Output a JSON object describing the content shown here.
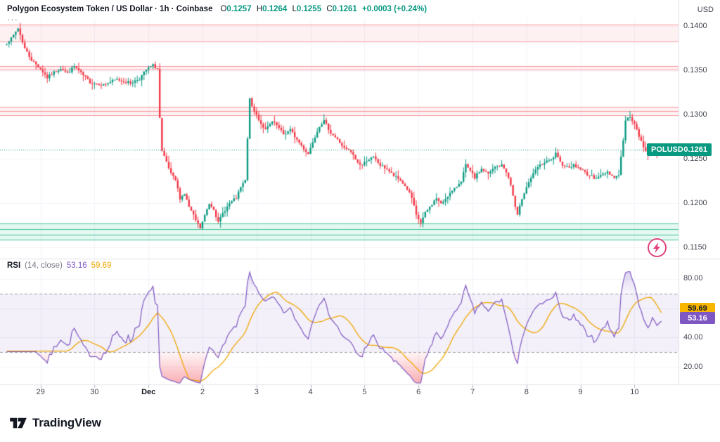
{
  "header": {
    "symbol_title": "Polygon Ecosystem Token / US Dollar · 1h · Coinbase",
    "ohlc": {
      "o_label": "O",
      "o": "0.1257",
      "h_label": "H",
      "h": "0.1264",
      "l_label": "L",
      "l": "0.1255",
      "c_label": "C",
      "c": "0.1261",
      "change": "+0.0003 (+0.24%)"
    },
    "currency_label": "USD",
    "more_label": "···"
  },
  "price_scale": {
    "labels": [
      "0.1400",
      "0.1350",
      "0.1300",
      "0.1250",
      "0.1200",
      "0.1150"
    ],
    "values": [
      0.14,
      0.135,
      0.13,
      0.125,
      0.12,
      0.115
    ]
  },
  "price_badge": {
    "symbol": "POLUSD",
    "value": "0.1261"
  },
  "rsi_panel_ui": {
    "title": "RSI",
    "params": "(14, close)",
    "value": "53.16",
    "ma_value": "59.69",
    "scale_labels": [
      "80.00",
      "40.00",
      "20.00"
    ],
    "scale_values": [
      80,
      40,
      20
    ],
    "badges": [
      {
        "text": "59.69",
        "kind": "ma",
        "value": 59.69
      },
      {
        "text": "53.16",
        "kind": "rsi",
        "value": 53.16
      }
    ]
  },
  "footer": {
    "brand": "TradingView"
  },
  "colors": {
    "up": "#089981",
    "down": "#f23645",
    "accent": "#089981",
    "rsi_line": "#7e57c2",
    "rsi_ma_line": "#f0a500",
    "rsi_badge_bg": "#7e57c2",
    "ma_badge_bg": "#f7b500",
    "resistance": "#f23645",
    "support": "#00b87c",
    "badge_bg": "#089981"
  },
  "chart_data": {
    "type": "candlestick",
    "title": "Polygon Ecosystem Token / US Dollar",
    "exchange": "Coinbase",
    "timeframe": "1h",
    "units": "USD",
    "ohlc_current": {
      "open": 0.1257,
      "high": 0.1264,
      "low": 0.1255,
      "close": 0.1261,
      "change": 0.0003,
      "change_pct": 0.24
    },
    "current_price": 0.1261,
    "ylim": [
      0.1144,
      0.1406
    ],
    "num_candles": 292,
    "close_anchors": [
      [
        0,
        0.138
      ],
      [
        3,
        0.1386
      ],
      [
        6,
        0.1398
      ],
      [
        9,
        0.1375
      ],
      [
        12,
        0.1362
      ],
      [
        16,
        0.1352
      ],
      [
        19,
        0.1342
      ],
      [
        22,
        0.1348
      ],
      [
        25,
        0.1353
      ],
      [
        28,
        0.1347
      ],
      [
        31,
        0.1355
      ],
      [
        34,
        0.1347
      ],
      [
        38,
        0.1337
      ],
      [
        44,
        0.1334
      ],
      [
        50,
        0.134
      ],
      [
        56,
        0.1336
      ],
      [
        60,
        0.1341
      ],
      [
        63,
        0.1351
      ],
      [
        66,
        0.1356
      ],
      [
        68,
        0.1352
      ],
      [
        69,
        0.1296
      ],
      [
        70,
        0.1258
      ],
      [
        72,
        0.1246
      ],
      [
        74,
        0.1233
      ],
      [
        76,
        0.1226
      ],
      [
        78,
        0.1206
      ],
      [
        80,
        0.1211
      ],
      [
        82,
        0.1196
      ],
      [
        85,
        0.1181
      ],
      [
        87,
        0.1172
      ],
      [
        89,
        0.1186
      ],
      [
        91,
        0.12
      ],
      [
        93,
        0.1194
      ],
      [
        95,
        0.1178
      ],
      [
        97,
        0.1189
      ],
      [
        100,
        0.12
      ],
      [
        103,
        0.1206
      ],
      [
        105,
        0.1218
      ],
      [
        107,
        0.1226
      ],
      [
        108,
        0.1272
      ],
      [
        109,
        0.132
      ],
      [
        110,
        0.1308
      ],
      [
        112,
        0.13
      ],
      [
        114,
        0.129
      ],
      [
        116,
        0.1283
      ],
      [
        119,
        0.1292
      ],
      [
        121,
        0.1288
      ],
      [
        124,
        0.1278
      ],
      [
        127,
        0.1283
      ],
      [
        130,
        0.1272
      ],
      [
        133,
        0.1262
      ],
      [
        135,
        0.1256
      ],
      [
        137,
        0.127
      ],
      [
        140,
        0.1288
      ],
      [
        142,
        0.1293
      ],
      [
        145,
        0.128
      ],
      [
        148,
        0.1272
      ],
      [
        151,
        0.1262
      ],
      [
        154,
        0.1258
      ],
      [
        157,
        0.1246
      ],
      [
        159,
        0.1243
      ],
      [
        161,
        0.1249
      ],
      [
        164,
        0.1252
      ],
      [
        167,
        0.1243
      ],
      [
        170,
        0.1239
      ],
      [
        173,
        0.1231
      ],
      [
        176,
        0.1226
      ],
      [
        179,
        0.1216
      ],
      [
        181,
        0.1206
      ],
      [
        183,
        0.1186
      ],
      [
        185,
        0.1178
      ],
      [
        187,
        0.1189
      ],
      [
        189,
        0.1196
      ],
      [
        192,
        0.1206
      ],
      [
        194,
        0.1199
      ],
      [
        197,
        0.1209
      ],
      [
        200,
        0.1216
      ],
      [
        203,
        0.1226
      ],
      [
        205,
        0.1243
      ],
      [
        207,
        0.1236
      ],
      [
        209,
        0.1229
      ],
      [
        212,
        0.1239
      ],
      [
        215,
        0.1233
      ],
      [
        218,
        0.1241
      ],
      [
        221,
        0.1243
      ],
      [
        223,
        0.1236
      ],
      [
        225,
        0.1221
      ],
      [
        227,
        0.1196
      ],
      [
        228,
        0.1186
      ],
      [
        230,
        0.1206
      ],
      [
        232,
        0.1219
      ],
      [
        234,
        0.1229
      ],
      [
        237,
        0.1241
      ],
      [
        240,
        0.1246
      ],
      [
        243,
        0.1249
      ],
      [
        245,
        0.1256
      ],
      [
        247,
        0.1246
      ],
      [
        250,
        0.1241
      ],
      [
        253,
        0.1243
      ],
      [
        256,
        0.1239
      ],
      [
        259,
        0.1233
      ],
      [
        262,
        0.1229
      ],
      [
        265,
        0.1231
      ],
      [
        268,
        0.1236
      ],
      [
        271,
        0.1229
      ],
      [
        273,
        0.1233
      ],
      [
        274,
        0.1252
      ],
      [
        275,
        0.1272
      ],
      [
        276,
        0.1293
      ],
      [
        278,
        0.1299
      ],
      [
        280,
        0.1289
      ],
      [
        282,
        0.1276
      ],
      [
        284,
        0.1263
      ],
      [
        286,
        0.1256
      ],
      [
        288,
        0.1263
      ],
      [
        290,
        0.1258
      ],
      [
        292,
        0.1261
      ]
    ],
    "day_ticks": [
      {
        "text": "29",
        "candle": 15
      },
      {
        "text": "30",
        "candle": 39
      },
      {
        "text": "Dec",
        "candle": 63,
        "major": true
      },
      {
        "text": "2",
        "candle": 87
      },
      {
        "text": "3",
        "candle": 111
      },
      {
        "text": "4",
        "candle": 135
      },
      {
        "text": "5",
        "candle": 159
      },
      {
        "text": "6",
        "candle": 183
      },
      {
        "text": "7",
        "candle": 207
      },
      {
        "text": "8",
        "candle": 231
      },
      {
        "text": "9",
        "candle": 255
      },
      {
        "text": "10",
        "candle": 279
      }
    ],
    "levels": {
      "resistance_zones": [
        {
          "top": 0.1402,
          "bottom": 0.1383
        },
        {
          "top": 0.1355,
          "bottom": 0.1351
        },
        {
          "top": 0.1309,
          "bottom": 0.13,
          "mid": 0.1304
        }
      ],
      "support_lines": [
        0.1177,
        0.1171,
        0.1165,
        0.1159
      ]
    },
    "rsi": {
      "type": "line",
      "period": 14,
      "ma_period": 14,
      "ylim": [
        9,
        91
      ],
      "band": [
        30,
        70
      ],
      "gridlines": [
        80,
        60,
        40,
        20
      ],
      "last": 53.16,
      "ma_last": 59.69
    }
  }
}
